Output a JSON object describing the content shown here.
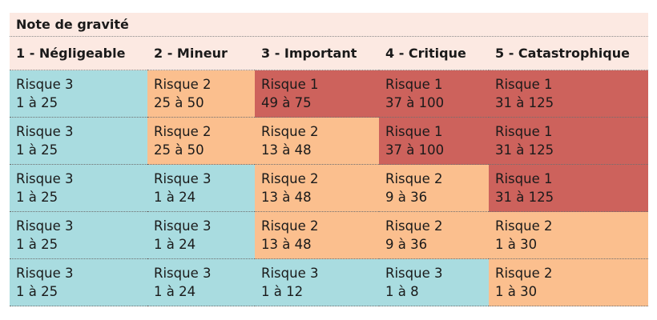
{
  "title": "Note de gravité",
  "columns": [
    "1 - Négligeable",
    "2 - Mineur",
    "3 - Important",
    "4 - Critique",
    "5 - Catastrophique"
  ],
  "risk_colors": {
    "1": "#cd625c",
    "2": "#fbbf8e",
    "3": "#a9dce0"
  },
  "rows": [
    [
      {
        "label": "Risque 3",
        "range": "1 à 25",
        "level": 3
      },
      {
        "label": "Risque 2",
        "range": "25 à 50",
        "level": 2
      },
      {
        "label": "Risque 1",
        "range": "49 à 75",
        "level": 1
      },
      {
        "label": "Risque 1",
        "range": "37 à 100",
        "level": 1
      },
      {
        "label": "Risque 1",
        "range": "31 à 125",
        "level": 1
      }
    ],
    [
      {
        "label": "Risque 3",
        "range": "1 à 25",
        "level": 3
      },
      {
        "label": "Risque 2",
        "range": "25 à 50",
        "level": 2
      },
      {
        "label": "Risque 2",
        "range": "13 à 48",
        "level": 2
      },
      {
        "label": "Risque 1",
        "range": "37 à 100",
        "level": 1
      },
      {
        "label": "Risque 1",
        "range": "31 à 125",
        "level": 1
      }
    ],
    [
      {
        "label": "Risque 3",
        "range": "1 à 25",
        "level": 3
      },
      {
        "label": "Risque 3",
        "range": "1 à 24",
        "level": 3
      },
      {
        "label": "Risque 2",
        "range": "13 à 48",
        "level": 2
      },
      {
        "label": "Risque 2",
        "range": "9 à 36",
        "level": 2
      },
      {
        "label": "Risque 1",
        "range": "31 à 125",
        "level": 1
      }
    ],
    [
      {
        "label": "Risque 3",
        "range": "1 à 25",
        "level": 3
      },
      {
        "label": "Risque 3",
        "range": "1 à 24",
        "level": 3
      },
      {
        "label": "Risque 2",
        "range": "13 à 48",
        "level": 2
      },
      {
        "label": "Risque 2",
        "range": "9 à 36",
        "level": 2
      },
      {
        "label": "Risque 2",
        "range": "1 à 30",
        "level": 2
      }
    ],
    [
      {
        "label": "Risque 3",
        "range": "1 à 25",
        "level": 3
      },
      {
        "label": "Risque 3",
        "range": "1 à 24",
        "level": 3
      },
      {
        "label": "Risque 3",
        "range": "1 à 12",
        "level": 3
      },
      {
        "label": "Risque 3",
        "range": "1 à 8",
        "level": 3
      },
      {
        "label": "Risque 2",
        "range": "1 à 30",
        "level": 2
      }
    ]
  ]
}
